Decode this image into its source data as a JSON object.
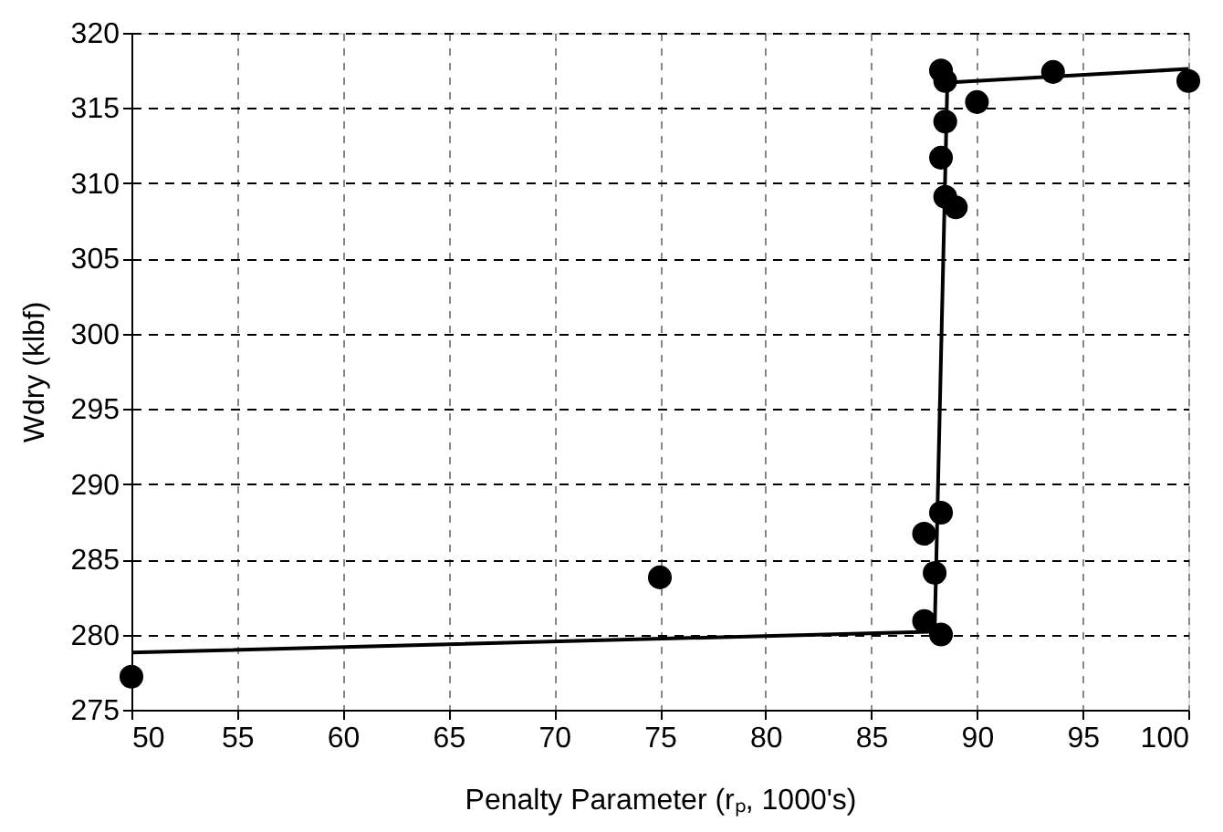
{
  "chart_data": {
    "type": "scatter",
    "xlabel": "Penalty Parameter (rₚ, 1000's)",
    "ylabel": "Wdry (klbf)",
    "xlim": [
      50,
      100
    ],
    "xticks": [
      50,
      55,
      60,
      65,
      70,
      75,
      80,
      85,
      90,
      95,
      100
    ],
    "ylim": [
      275,
      320
    ],
    "yticks": [
      275,
      280,
      285,
      290,
      295,
      300,
      305,
      310,
      315,
      320
    ],
    "grid": true,
    "marker": "circle",
    "series": [
      {
        "color": "#000000",
        "x": [
          50,
          75,
          87.5,
          88.3,
          88.0,
          87.5,
          88.3,
          88.5,
          89.0,
          88.3,
          88.5,
          90.0,
          88.3,
          88.5,
          93.6,
          100
        ],
        "values": [
          277.2,
          283.8,
          280.9,
          280.0,
          284.1,
          286.7,
          288.1,
          309.1,
          308.4,
          311.7,
          314.1,
          315.4,
          317.5,
          316.8,
          317.4,
          316.8
        ]
      },
      {
        "type": "line",
        "color": "#000000",
        "marker": "none",
        "line_style": "solid",
        "x": [
          50,
          88.0,
          88.6,
          100
        ],
        "values": [
          278.8,
          280.2,
          316.7,
          317.6
        ]
      }
    ]
  }
}
